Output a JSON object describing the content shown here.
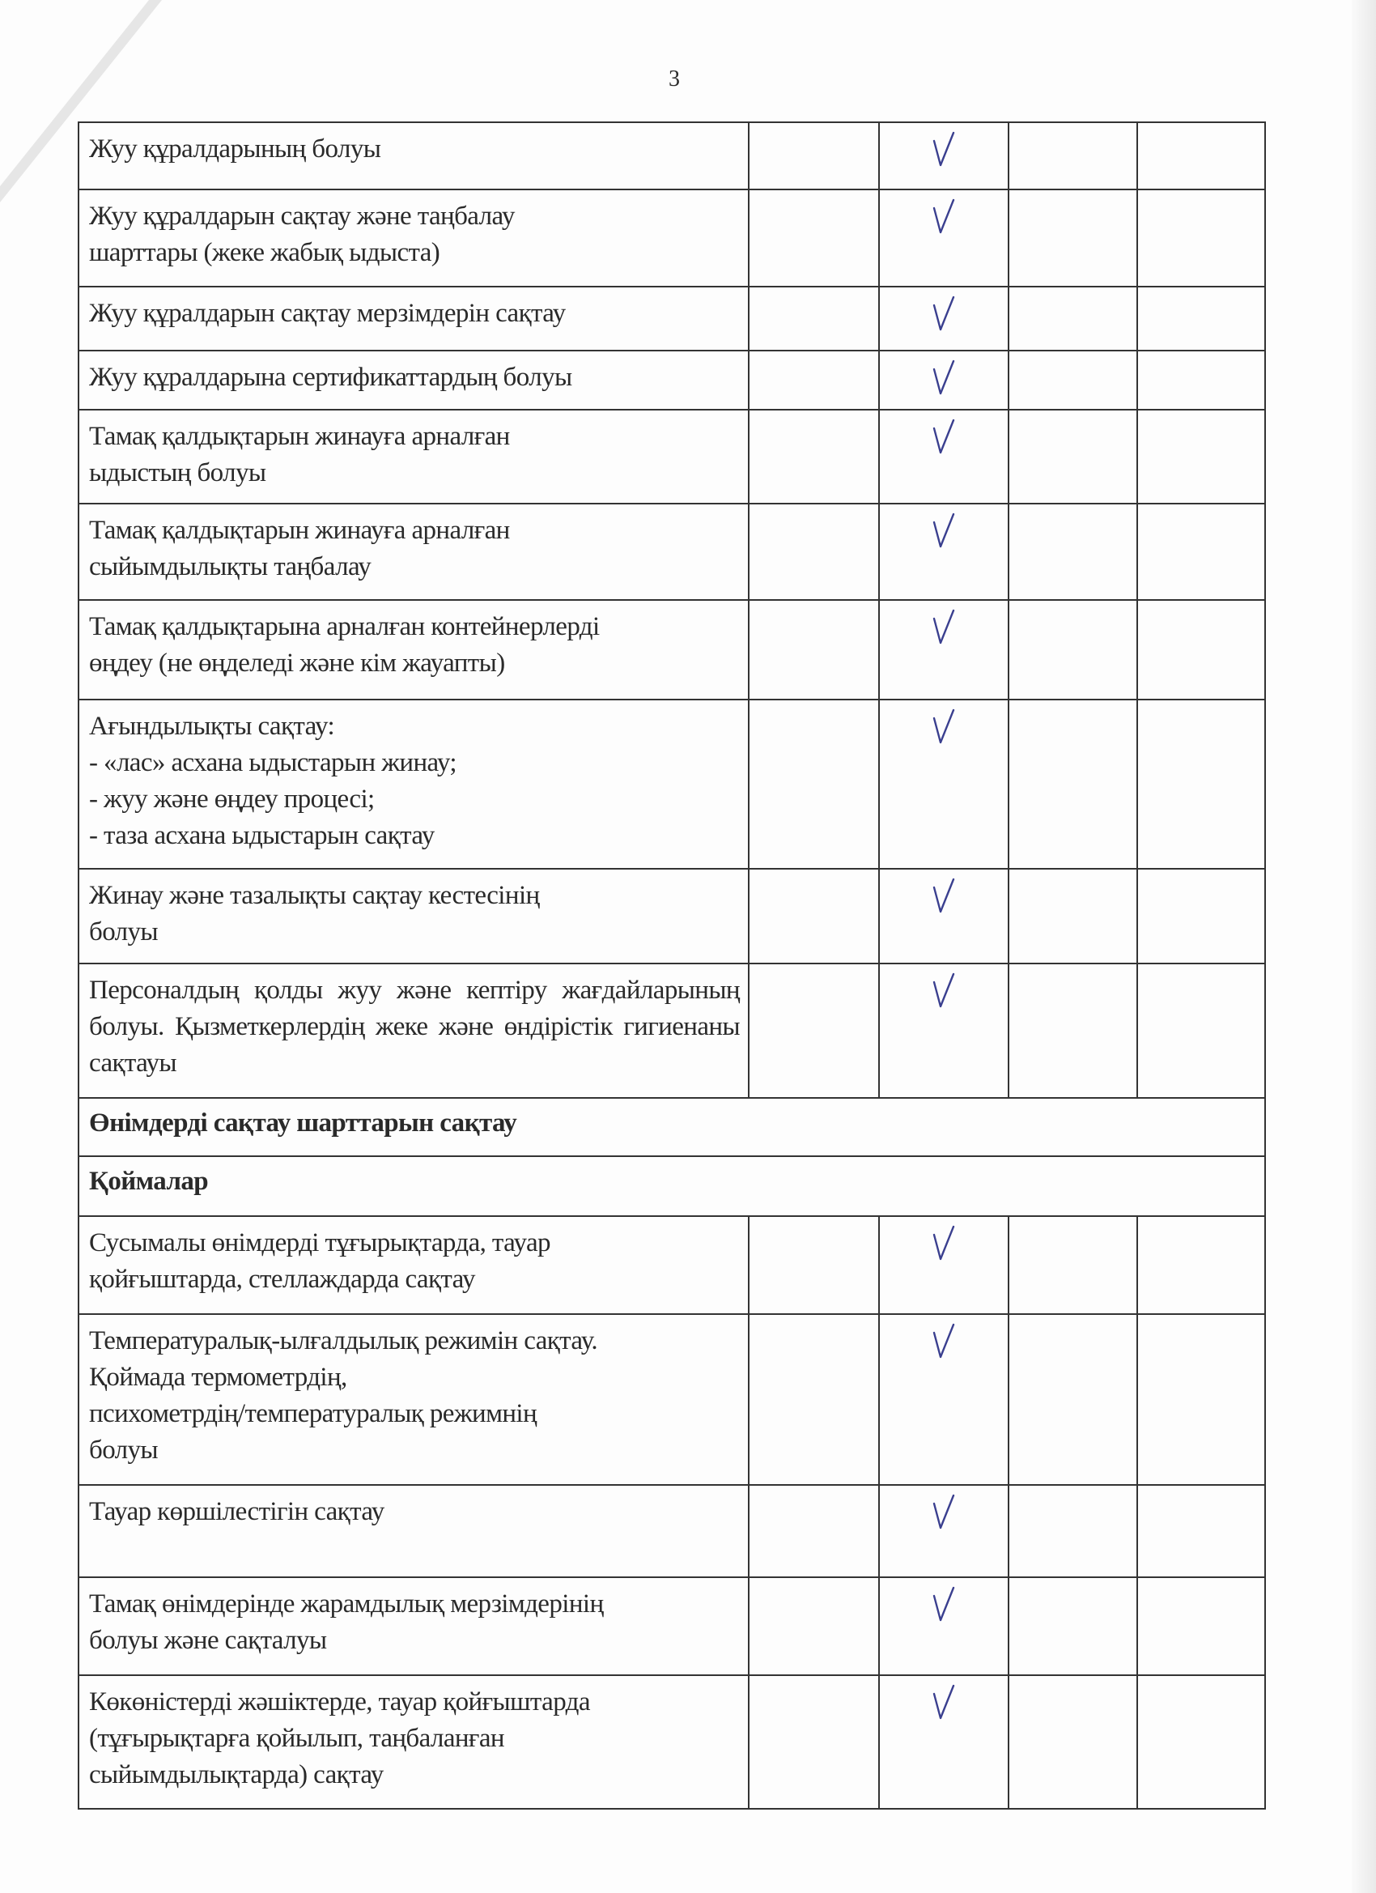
{
  "page_number": "3",
  "check_color": "#3a3f8f",
  "rows": [
    {
      "type": "item",
      "lines": [
        "Жуу құралдарының болуы"
      ],
      "checked_column": 2
    },
    {
      "type": "item",
      "lines": [
        "Жуу құралдарын сақтау және таңбалау",
        "шарттары (жеке жабық ыдыста)"
      ],
      "checked_column": 2
    },
    {
      "type": "item",
      "lines": [
        "Жуу құралдарын сақтау мерзімдерін сақтау"
      ],
      "checked_column": 2
    },
    {
      "type": "item",
      "lines": [
        "Жуу құралдарына сертификаттардың болуы"
      ],
      "checked_column": 2
    },
    {
      "type": "item",
      "lines": [
        "Тамақ қалдықтарын жинауға арналған",
        "ыдыстың болуы"
      ],
      "checked_column": 2
    },
    {
      "type": "item",
      "lines": [
        "Тамақ қалдықтарын жинауға арналған",
        "сыйымдылықты таңбалау"
      ],
      "checked_column": 2
    },
    {
      "type": "item",
      "lines": [
        "Тамақ қалдықтарына арналған контейнерлерді",
        "өңдеу (не өңделеді және кім жауапты)"
      ],
      "checked_column": 2
    },
    {
      "type": "item",
      "lines": [
        "Ағындылықты сақтау:",
        "- «лас» асхана ыдыстарын жинау;",
        "- жуу және өңдеу процесі;",
        "- таза асхана ыдыстарын сақтау"
      ],
      "checked_column": 2
    },
    {
      "type": "item",
      "lines": [
        "Жинау және тазалықты сақтау кестесінің",
        "болуы"
      ],
      "checked_column": 2
    },
    {
      "type": "item",
      "justified": true,
      "lines": [
        "Персоналдың қолды жуу және кептіру жағдайларының болуы. Қызметкерлердің жеке және өндірістік гигиенаны сақтауы"
      ],
      "checked_column": 2
    },
    {
      "type": "section",
      "lines": [
        "Өнімдерді сақтау шарттарын сақтау"
      ]
    },
    {
      "type": "section",
      "lines": [
        "Қоймалар"
      ]
    },
    {
      "type": "item",
      "lines": [
        "Сусымалы өнімдерді тұғырықтарда, тауар",
        "қойғыштарда, стеллаждарда сақтау"
      ],
      "checked_column": 2
    },
    {
      "type": "item",
      "lines": [
        "Температуралық-ылғалдылық режимін сақтау.",
        "Қоймада термометрдің,",
        "психометрдің/температуралық режимнің",
        "болуы"
      ],
      "checked_column": 2
    },
    {
      "type": "item",
      "lines": [
        "Тауар көршілестігін сақтау"
      ],
      "checked_column": 2
    },
    {
      "type": "item",
      "lines": [
        "Тамақ өнімдерінде жарамдылық мерзімдерінің",
        "болуы және сақталуы"
      ],
      "checked_column": 2
    },
    {
      "type": "item",
      "lines": [
        "Көкөністерді жәшіктерде, тауар қойғыштарда",
        "(тұғырықтарға қойылып, таңбаланған",
        "сыйымдылықтарда) сақтау"
      ],
      "checked_column": 2
    }
  ]
}
